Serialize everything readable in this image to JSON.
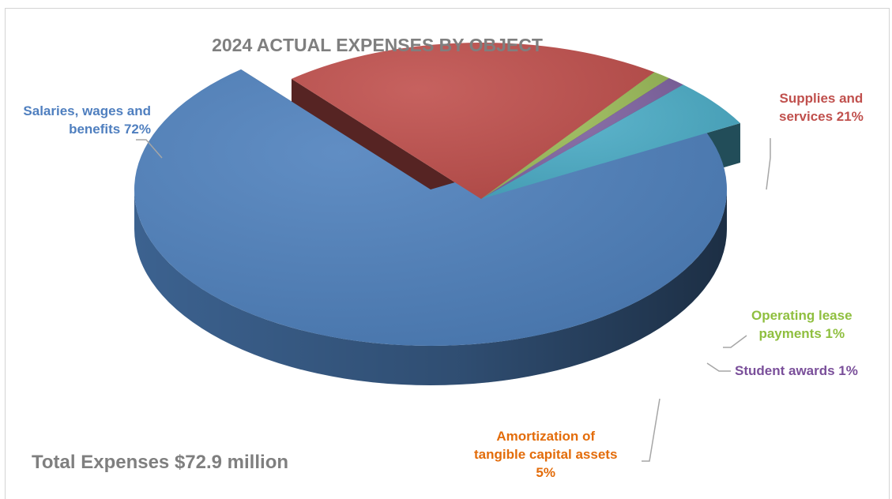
{
  "chart_data": {
    "type": "pie",
    "style": "3d-exploded",
    "title": "2024 ACTUAL EXPENSES BY OBJECT",
    "annotation": "Total Expenses $72.9 million",
    "slices": [
      {
        "label_lines": [
          "Salaries, wages and",
          "benefits 72%"
        ],
        "value": 72,
        "color": "#4f81bd"
      },
      {
        "label_lines": [
          "Supplies and",
          "services 21%"
        ],
        "value": 21,
        "color": "#c0504d"
      },
      {
        "label_lines": [
          "Operating lease",
          "payments 1%"
        ],
        "value": 1,
        "color": "#9bbb59"
      },
      {
        "label_lines": [
          "Student awards 1%"
        ],
        "value": 1,
        "color": "#8064a2"
      },
      {
        "label_lines": [
          "Amortization of",
          "tangible capital assets",
          "5%"
        ],
        "value": 5,
        "color": "#4bacc6"
      }
    ]
  }
}
